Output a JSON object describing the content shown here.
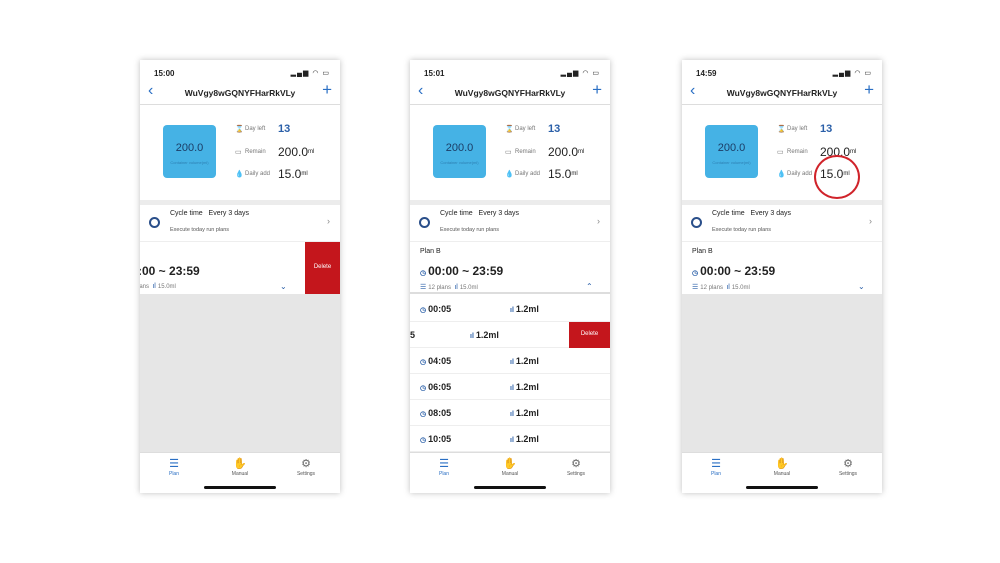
{
  "device_name": "WuVgy8wGQNYFHarRkVLy",
  "container": {
    "value": "200.0",
    "label": "Container volume(ml)"
  },
  "info": {
    "day_left_label": "Day left",
    "day_left": "13",
    "remain_label": "Remain",
    "remain": "200.0",
    "daily_label": "Daily add",
    "daily": "15.0",
    "unit": "ml"
  },
  "cycle": {
    "label": "Cycle time",
    "value": "Every 3 days",
    "sub": "Execute today run plans"
  },
  "plan": {
    "name": "Plan B",
    "range": "00:00 ~ 23:59",
    "count": "12 plans",
    "amount": "15.0ml",
    "range_partial": ":00 ~ 23:59",
    "count_partial": "lans"
  },
  "delete_label": "Delete",
  "tabs": [
    "Plan",
    "Manual",
    "Settings"
  ],
  "phones": [
    {
      "time": "15:00"
    },
    {
      "time": "15:01"
    },
    {
      "time": "14:59"
    }
  ],
  "schedule": [
    {
      "time": "00:05",
      "amount": "1.2ml"
    },
    {
      "time": "5",
      "amount": "1.2ml"
    },
    {
      "time": "04:05",
      "amount": "1.2ml"
    },
    {
      "time": "06:05",
      "amount": "1.2ml"
    },
    {
      "time": "08:05",
      "amount": "1.2ml"
    },
    {
      "time": "10:05",
      "amount": "1.2ml"
    }
  ],
  "colors": {
    "accent": "#2a6fc4",
    "tank": "#45b2e5",
    "delete": "#c4161c",
    "highlight_circle": "#d0232a"
  }
}
